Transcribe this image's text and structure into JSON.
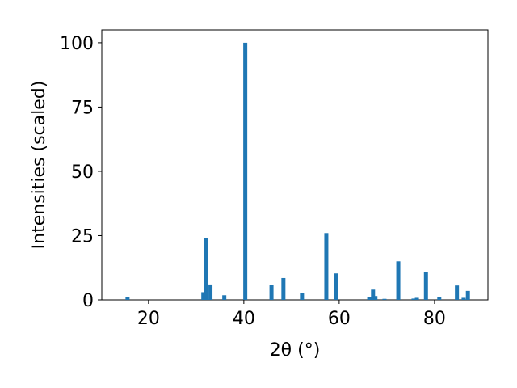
{
  "chart_data": {
    "type": "bar",
    "xlabel": "2θ (°)",
    "ylabel": "Intensities (scaled)",
    "x": [
      15.6,
      31.5,
      32.0,
      33.0,
      35.9,
      40.3,
      45.8,
      48.3,
      52.2,
      57.3,
      59.3,
      66.3,
      67.1,
      67.6,
      69.5,
      72.4,
      75.6,
      76.3,
      78.2,
      81.0,
      84.7,
      86.1,
      87.0
    ],
    "values": [
      1.2,
      3.0,
      24,
      6,
      1.8,
      100,
      5.7,
      8.5,
      2.8,
      26,
      10.3,
      1.2,
      4,
      1.5,
      0.4,
      15,
      0.5,
      0.8,
      11,
      1.0,
      5.6,
      0.8,
      3.5
    ],
    "color": "#1f77b4",
    "xlim": [
      10.2,
      91.2
    ],
    "xticks": [
      20,
      40,
      60,
      80
    ],
    "ylim": [
      0,
      105
    ],
    "yticks": [
      0,
      25,
      50,
      75,
      100
    ]
  }
}
